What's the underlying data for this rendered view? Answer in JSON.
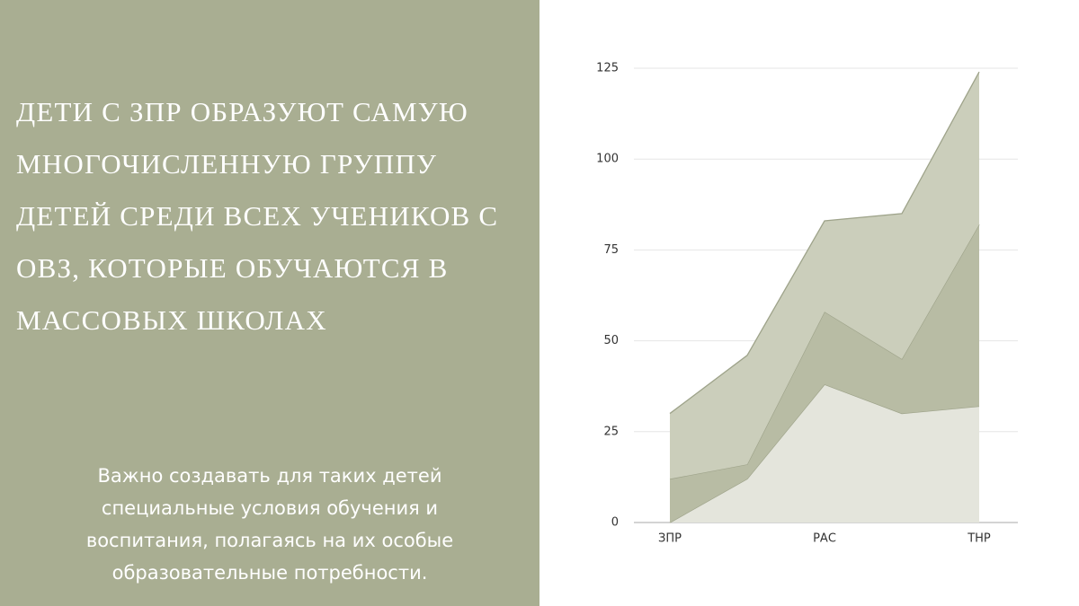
{
  "slide": {
    "heading": "ДЕТИ С ЗПР ОБРАЗУЮТ САМУЮ МНОГОЧИСЛЕННУЮ ГРУППУ ДЕТЕЙ СРЕДИ ВСЕХ УЧЕНИКОВ С ОВЗ, КОТОРЫЕ ОБУЧАЮТСЯ В МАССОВЫХ ШКОЛАХ",
    "body": "Важно создавать для таких детей специальные условия обучения и воспитания, полагаясь на их особые образовательные потребности."
  },
  "chart_data": {
    "type": "stacked_area",
    "categories": [
      "ЗПР",
      null,
      "РАС",
      null,
      "ТНР"
    ],
    "series": [
      {
        "color": "#e4e5dc",
        "values": [
          0,
          12,
          38,
          30,
          32
        ]
      },
      {
        "color": "#b8bca4",
        "values": [
          12,
          4,
          20,
          15,
          50
        ]
      },
      {
        "color": "#cbcebb",
        "values": [
          18,
          30,
          25,
          40,
          42
        ]
      }
    ],
    "ylim": [
      0,
      125
    ],
    "yticks": [
      0,
      25,
      50,
      75,
      100,
      125
    ],
    "grid": true
  }
}
